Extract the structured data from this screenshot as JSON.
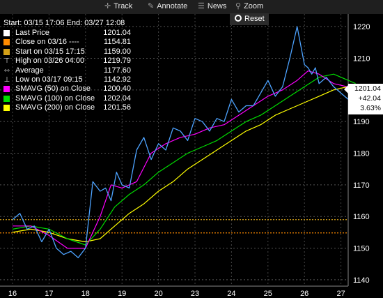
{
  "toolbar": {
    "track": "Track",
    "annotate": "Annotate",
    "news": "News",
    "zoom": "Zoom",
    "reset": "Reset"
  },
  "range_text": "Start: 03/15 17:06 End: 03/27 12:08",
  "legend": [
    {
      "label": "Last Price",
      "value": "1201.04",
      "color": "#ffffff",
      "marker": "square"
    },
    {
      "label": "Close on 03/16 ----",
      "value": "1154.81",
      "color": "#ff8c00",
      "marker": "square"
    },
    {
      "label": "Start on 03/15 17:15",
      "value": "1159.00",
      "color": "#d4a017",
      "marker": "square"
    },
    {
      "label": "High on 03/26 04:00",
      "value": "1219.79",
      "color": "#ffffff",
      "marker": "high"
    },
    {
      "label": "Average",
      "value": "1177.60",
      "color": "#ffffff",
      "marker": "average"
    },
    {
      "label": "Low on 03/17 09:15",
      "value": "1142.92",
      "color": "#ffffff",
      "marker": "low"
    },
    {
      "label": "SMAVG (50) on Close",
      "value": "1200.40",
      "color": "#ff00ff",
      "marker": "square"
    },
    {
      "label": "SMAVG (100) on Close",
      "value": "1202.04",
      "color": "#00dd00",
      "marker": "square"
    },
    {
      "label": "SMAVG (200) on Close",
      "value": "1201.56",
      "color": "#ffff00",
      "marker": "square"
    }
  ],
  "last_tag": {
    "price": "1201.04",
    "change": "+42.04",
    "pct": "3.63%"
  },
  "chart_data": {
    "type": "line",
    "x_ticks": [
      "16",
      "17",
      "18",
      "19",
      "20",
      "23",
      "24",
      "25",
      "26",
      "27"
    ],
    "y_ticks": [
      1140,
      1150,
      1160,
      1170,
      1180,
      1190,
      1200,
      1210,
      1220
    ],
    "ylim": [
      1138,
      1224
    ],
    "reference_lines": [
      {
        "name": "Close on 03/16",
        "value": 1154.81,
        "color": "#ff8c00"
      },
      {
        "name": "Start on 03/15 17:15",
        "value": 1159.0,
        "color": "#d4a017"
      }
    ],
    "series": [
      {
        "name": "Last Price",
        "color": "#4da3ff",
        "x": [
          0,
          0.2,
          0.4,
          0.6,
          0.8,
          1,
          1.2,
          1.4,
          1.6,
          1.8,
          2,
          2.2,
          2.4,
          2.55,
          2.7,
          2.85,
          3,
          3.2,
          3.4,
          3.6,
          3.8,
          4,
          4.2,
          4.4,
          4.6,
          4.8,
          5,
          5.2,
          5.4,
          5.6,
          5.8,
          6,
          6.2,
          6.4,
          6.6,
          6.8,
          7,
          7.2,
          7.4,
          7.6,
          7.8,
          8,
          8.1,
          8.2,
          8.3,
          8.4,
          8.6,
          8.8,
          9,
          9.2,
          9.4
        ],
        "values": [
          1159,
          1161,
          1156,
          1157,
          1152,
          1156,
          1150,
          1148,
          1149,
          1147,
          1150,
          1171,
          1168,
          1169,
          1165,
          1174,
          1170,
          1169,
          1181,
          1185,
          1178,
          1183,
          1181,
          1188,
          1187,
          1184,
          1191,
          1190,
          1187,
          1191,
          1190,
          1197,
          1193,
          1195,
          1195,
          1199,
          1203,
          1198,
          1201,
          1210,
          1220,
          1208,
          1207,
          1205,
          1207,
          1202,
          1204,
          1201,
          1199,
          1197,
          1201.04
        ]
      },
      {
        "name": "SMAVG (50) on Close",
        "color": "#ff00ff",
        "x": [
          0,
          0.5,
          1,
          1.5,
          2,
          2.4,
          2.7,
          3,
          3.4,
          3.8,
          4.2,
          4.6,
          5,
          5.4,
          5.8,
          6.2,
          6.6,
          7,
          7.4,
          7.8,
          8.1,
          8.4,
          8.8,
          9.4
        ],
        "values": [
          1157,
          1157,
          1154,
          1150,
          1150,
          1160,
          1170,
          1169,
          1171,
          1180,
          1183,
          1185,
          1186,
          1188,
          1189,
          1192,
          1195,
          1198,
          1200,
          1203,
          1206,
          1205,
          1202,
          1200.4
        ]
      },
      {
        "name": "SMAVG (100) on Close",
        "color": "#00dd00",
        "x": [
          0,
          0.5,
          1,
          1.5,
          2,
          2.4,
          2.8,
          3.2,
          3.6,
          4,
          4.4,
          4.8,
          5.2,
          5.6,
          6,
          6.4,
          6.8,
          7.2,
          7.6,
          8,
          8.4,
          8.8,
          9.4
        ],
        "values": [
          1156,
          1157,
          1156,
          1153,
          1151,
          1156,
          1163,
          1167,
          1170,
          1174,
          1177,
          1180,
          1182,
          1184,
          1187,
          1190,
          1192,
          1195,
          1198,
          1201,
          1204,
          1205,
          1202.04
        ]
      },
      {
        "name": "SMAVG (200) on Close",
        "color": "#ffff00",
        "x": [
          0,
          0.5,
          1,
          1.5,
          2,
          2.4,
          2.8,
          3.2,
          3.6,
          4,
          4.4,
          4.8,
          5.2,
          5.6,
          6,
          6.4,
          6.8,
          7.2,
          7.6,
          8,
          8.4,
          8.8,
          9.4
        ],
        "values": [
          1155,
          1156,
          1155,
          1153,
          1152,
          1153,
          1157,
          1161,
          1164,
          1168,
          1171,
          1175,
          1178,
          1181,
          1184,
          1187,
          1189,
          1192,
          1194,
          1196,
          1198,
          1200,
          1201.56
        ]
      }
    ]
  }
}
